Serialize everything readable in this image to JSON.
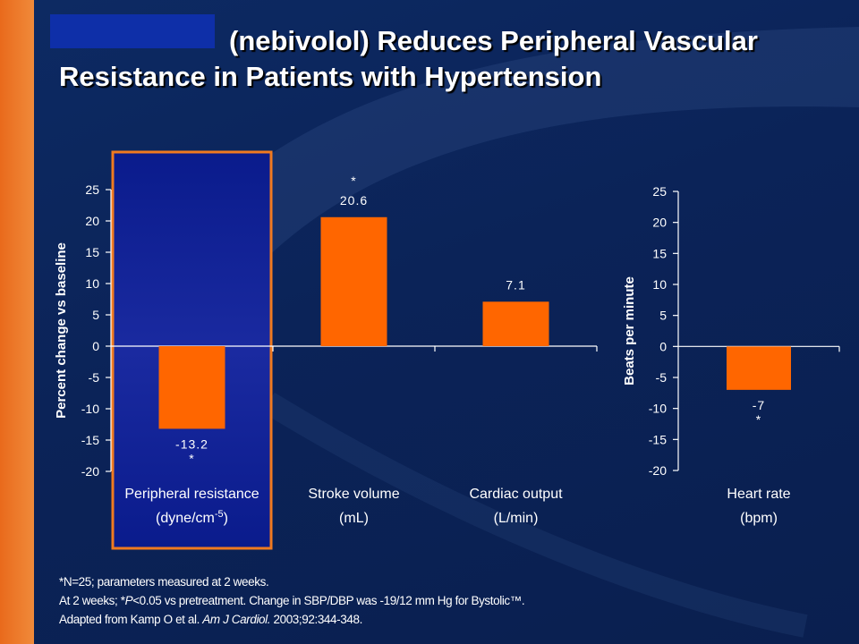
{
  "title": {
    "line1": "(nebivolol) Reduces Peripheral Vascular",
    "line2": "Resistance in Patients with Hypertension"
  },
  "colors": {
    "bar": "#ff6600",
    "highlight_border": "#f07a20",
    "highlight_fill": "#1a2aa0",
    "axis": "#ffffff",
    "left_stripe": "#e96a1c"
  },
  "chart_data": [
    {
      "type": "bar",
      "ylabel": "Percent change vs baseline",
      "ylim": [
        -20,
        25
      ],
      "yticks": [
        "25",
        "20",
        "15",
        "10",
        "5",
        "0",
        "-5",
        "-10",
        "-15",
        "-20"
      ],
      "categories": [
        {
          "name": "Peripheral resistance",
          "unit_prefix": "(dyne/cm",
          "unit_sup": "-5",
          "unit_suffix": ")"
        },
        {
          "name": "Stroke volume",
          "unit_prefix": "(mL)",
          "unit_sup": "",
          "unit_suffix": ""
        },
        {
          "name": "Cardiac output",
          "unit_prefix": "(L/min)",
          "unit_sup": "",
          "unit_suffix": ""
        }
      ],
      "values": [
        -13.2,
        20.6,
        7.1
      ],
      "value_labels": [
        "-13.2",
        "20.6",
        "7.1"
      ],
      "significance": [
        "*",
        "*",
        ""
      ],
      "highlighted_category": "Peripheral resistance",
      "grid": false
    },
    {
      "type": "bar",
      "ylabel": "Beats per minute",
      "ylim": [
        -20,
        25
      ],
      "yticks": [
        "25",
        "20",
        "15",
        "10",
        "5",
        "0",
        "-5",
        "-10",
        "-15",
        "-20"
      ],
      "categories": [
        {
          "name": "Heart rate",
          "unit_prefix": "(bpm)",
          "unit_sup": "",
          "unit_suffix": ""
        }
      ],
      "values": [
        -7
      ],
      "value_labels": [
        "-7"
      ],
      "significance": [
        "*"
      ],
      "grid": false
    }
  ],
  "footnotes": {
    "line1": "*N=25; parameters measured at 2 weeks.",
    "line2_pre": "At 2 weeks; *",
    "line2_p": "P",
    "line2_post": "<0.05 vs pretreatment. Change in SBP/DBP was -19/12 mm Hg for Bystolic™.",
    "line3_pre": "Adapted from Kamp O et al. ",
    "line3_journal": "Am J Cardiol.",
    "line3_post": " 2003;92:344-348."
  }
}
